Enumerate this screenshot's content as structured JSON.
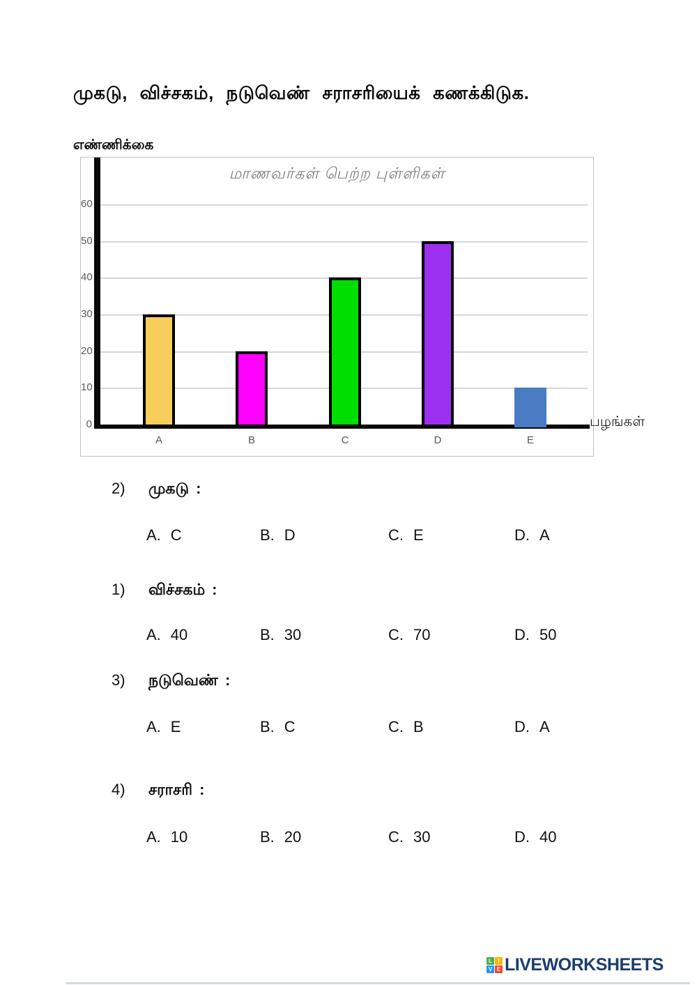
{
  "page": {
    "title": "முகடு, விச்சகம், நடுவெண் சராசரியைக் கணக்கிடுக."
  },
  "chart_data": {
    "type": "bar",
    "title": "மாணவர்கள் பெற்ற புள்ளிகள்",
    "ylabel": "எண்ணிக்கை",
    "xlabel": "பழங்கள்",
    "categories": [
      "A",
      "B",
      "C",
      "D",
      "E"
    ],
    "values": [
      30,
      20,
      40,
      50,
      10
    ],
    "bar_colors": [
      "#f7ce5b",
      "#ff00ff",
      "#00dd00",
      "#9b30f0",
      "#4a7cc4"
    ],
    "bar_has_border": [
      true,
      true,
      true,
      true,
      false
    ],
    "bar_border_color": "#000000",
    "ylim": [
      0,
      60
    ],
    "yticks": [
      0,
      10,
      20,
      30,
      40,
      50,
      60
    ],
    "grid": true,
    "legend": "none",
    "gridline_color": "#d6d6d6",
    "axis_color": "#0a0a0a",
    "tick_text_color": "#595959",
    "title_color": "#7f7f7f"
  },
  "questions": [
    {
      "number": "2)",
      "label": "முகடு",
      "colon": ":",
      "options": [
        {
          "label": "A.",
          "value": "C"
        },
        {
          "label": "B.",
          "value": "D"
        },
        {
          "label": "C.",
          "value": "E"
        },
        {
          "label": "D.",
          "value": "A"
        }
      ]
    },
    {
      "number": "1)",
      "label": "விச்சகம்",
      "colon": ":",
      "options": [
        {
          "label": "A.",
          "value": "40"
        },
        {
          "label": "B.",
          "value": "30"
        },
        {
          "label": "C.",
          "value": "70"
        },
        {
          "label": "D.",
          "value": "50"
        }
      ]
    },
    {
      "number": "3)",
      "label": "நடுவெண்",
      "colon": ":",
      "options": [
        {
          "label": "A.",
          "value": "E"
        },
        {
          "label": "B.",
          "value": "C"
        },
        {
          "label": "C.",
          "value": "B"
        },
        {
          "label": "D.",
          "value": "A"
        }
      ]
    },
    {
      "number": "4)",
      "label": "சராசரி",
      "colon": ":",
      "options": [
        {
          "label": "A.",
          "value": "10"
        },
        {
          "label": "B.",
          "value": "20"
        },
        {
          "label": "C.",
          "value": "30"
        },
        {
          "label": "D.",
          "value": "40"
        }
      ]
    }
  ],
  "footer": {
    "logo_text": "LIVEWORKSHEETS",
    "logo_text_color": "#1b3d6d",
    "logo_squares": [
      {
        "letter": "L",
        "color": "#4caf50"
      },
      {
        "letter": "I",
        "color": "#ffb300"
      },
      {
        "letter": "V",
        "color": "#2196f3"
      },
      {
        "letter": "E",
        "color": "#f44336"
      }
    ]
  }
}
